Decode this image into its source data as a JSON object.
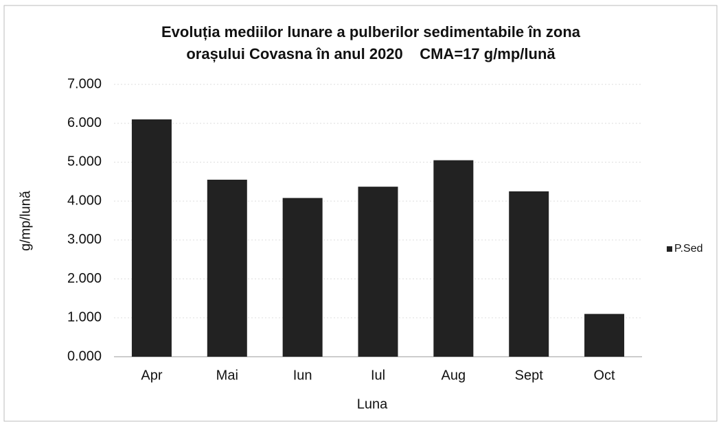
{
  "chart_data": {
    "type": "bar",
    "title": [
      "Evoluția mediilor lunare a pulberilor sedimentabile în zona",
      "orașului Covasna în anul 2020    CMA=17 g/mp/lună"
    ],
    "x_label": "Luna",
    "y_label": "g/mp/lună",
    "categories": [
      "Apr",
      "Mai",
      "Iun",
      "Iul",
      "Aug",
      "Sept",
      "Oct"
    ],
    "series": [
      {
        "name": "P.Sed",
        "color": "#222222",
        "values": [
          6.1,
          4.55,
          4.08,
          4.37,
          5.05,
          4.25,
          1.1
        ]
      }
    ],
    "ylim": [
      0,
      7
    ],
    "yticks": [
      {
        "value": 0,
        "label": "0.000"
      },
      {
        "value": 1,
        "label": "1.000"
      },
      {
        "value": 2,
        "label": "2.000"
      },
      {
        "value": 3,
        "label": "3.000"
      },
      {
        "value": 4,
        "label": "4.000"
      },
      {
        "value": 5,
        "label": "5.000"
      },
      {
        "value": 6,
        "label": "6.000"
      },
      {
        "value": 7,
        "label": "7.000"
      }
    ],
    "grid": true,
    "legend": "right"
  }
}
